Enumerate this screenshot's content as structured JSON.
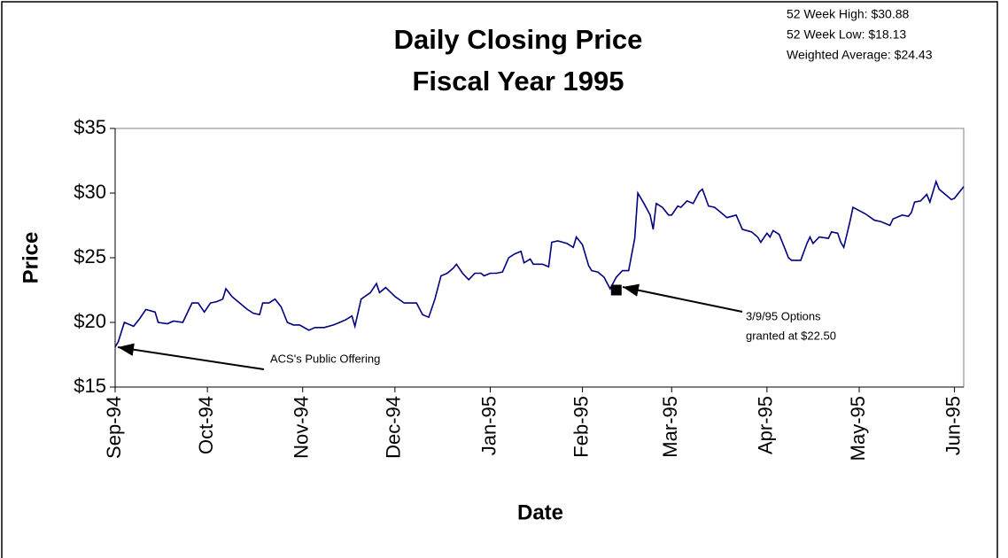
{
  "chart_data": {
    "type": "line",
    "title": [
      "Daily Closing Price",
      "Fiscal Year 1995"
    ],
    "stats": [
      "52 Week High: $30.88",
      "52 Week Low: $18.13",
      "Weighted Average: $24.43"
    ],
    "xlabel": "Date",
    "ylabel": "Price",
    "color": "#000080",
    "x": [
      0,
      1,
      3,
      6,
      8,
      10,
      13,
      14,
      17,
      19,
      22,
      24,
      25,
      27,
      29,
      31,
      33,
      35,
      36,
      38,
      40,
      43,
      45,
      47,
      48,
      50,
      52,
      54,
      56,
      58,
      60,
      63,
      65,
      68,
      71,
      73,
      75,
      77,
      78,
      80,
      83,
      85,
      86,
      88,
      91,
      94,
      98,
      100,
      102,
      104,
      106,
      108,
      110,
      111,
      113,
      115,
      117,
      119,
      120,
      122,
      124,
      126,
      128,
      130,
      132,
      133,
      135,
      136,
      139,
      141,
      142,
      144,
      147,
      149,
      150,
      152,
      154,
      155,
      157,
      159,
      161,
      163,
      165,
      167,
      169,
      170,
      172,
      174,
      175,
      176,
      178,
      180,
      181,
      183,
      184,
      186,
      188,
      190,
      191,
      193,
      195,
      197,
      199,
      202,
      204,
      207,
      209,
      210,
      212,
      213,
      214,
      216,
      218,
      219,
      220,
      223,
      225,
      226,
      227,
      229,
      232,
      233,
      235,
      236,
      237,
      239,
      240,
      244,
      247,
      249,
      252,
      253,
      256,
      258,
      259,
      260,
      262,
      264,
      265,
      267,
      268,
      270,
      272,
      273,
      276
    ],
    "values": [
      18.1,
      18.5,
      20.0,
      19.7,
      20.3,
      21.0,
      20.8,
      20.0,
      19.9,
      20.1,
      20.0,
      21.0,
      21.5,
      21.5,
      20.8,
      21.5,
      21.6,
      21.8,
      22.6,
      22.0,
      21.6,
      21.0,
      20.7,
      20.6,
      21.5,
      21.5,
      21.8,
      21.2,
      20.0,
      19.8,
      19.8,
      19.4,
      19.6,
      19.6,
      19.8,
      20.0,
      20.2,
      20.5,
      19.7,
      21.8,
      22.3,
      23.0,
      22.3,
      22.7,
      22.0,
      21.5,
      21.5,
      20.6,
      20.4,
      21.8,
      23.6,
      23.8,
      24.2,
      24.5,
      23.8,
      23.3,
      23.8,
      23.8,
      23.6,
      23.8,
      23.8,
      23.9,
      25.0,
      25.3,
      25.5,
      24.6,
      24.9,
      24.5,
      24.5,
      24.3,
      26.2,
      26.3,
      26.1,
      25.8,
      26.6,
      26.0,
      24.4,
      24.0,
      23.9,
      23.5,
      22.6,
      23.5,
      24.0,
      24.0,
      26.5,
      30.0,
      29.2,
      28.3,
      27.2,
      29.2,
      28.9,
      28.3,
      28.3,
      29.0,
      28.9,
      29.4,
      29.2,
      30.1,
      30.3,
      29.0,
      28.9,
      28.5,
      28.1,
      28.3,
      27.2,
      27.0,
      26.6,
      26.2,
      26.9,
      26.6,
      27.1,
      26.8,
      25.6,
      25.0,
      24.8,
      24.8,
      26.1,
      26.6,
      26.1,
      26.6,
      26.5,
      27.0,
      26.9,
      26.2,
      25.8,
      27.8,
      28.9,
      28.4,
      27.9,
      27.8,
      27.5,
      28.0,
      28.3,
      28.2,
      28.5,
      29.3,
      29.4,
      29.9,
      29.3,
      30.9,
      30.3,
      29.9,
      29.5,
      29.6,
      30.5
    ],
    "xlim": [
      0,
      276
    ],
    "xticks": [
      {
        "value": 0,
        "label": "Sep-94"
      },
      {
        "value": 30,
        "label": "Oct-94"
      },
      {
        "value": 61,
        "label": "Nov-94"
      },
      {
        "value": 91,
        "label": "Dec-94"
      },
      {
        "value": 122,
        "label": "Jan-95"
      },
      {
        "value": 152,
        "label": "Feb-95"
      },
      {
        "value": 181,
        "label": "Mar-95"
      },
      {
        "value": 212,
        "label": "Apr-95"
      },
      {
        "value": 242,
        "label": "May-95"
      },
      {
        "value": 273,
        "label": "Jun-95"
      }
    ],
    "ylim": [
      15,
      35
    ],
    "yticks": [
      {
        "value": 15,
        "label": "$15"
      },
      {
        "value": 20,
        "label": "$20"
      },
      {
        "value": 25,
        "label": "$25"
      },
      {
        "value": 30,
        "label": "$30"
      },
      {
        "value": 35,
        "label": "$35"
      }
    ],
    "annotations": [
      {
        "text": [
          "ACS's Public Offering"
        ]
      },
      {
        "text": [
          "3/9/95 Options",
          "granted at $22.50"
        ],
        "x": 163,
        "y": 22.5
      }
    ]
  }
}
